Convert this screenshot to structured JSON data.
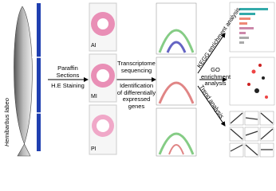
{
  "fish": {
    "species": "Hemibarbus labeo",
    "segments": [
      "AI",
      "MI",
      "PI"
    ]
  },
  "histology": {
    "steps": [
      "Paraffin Sections",
      "H.E Staining"
    ],
    "slides": [
      "AI",
      "MI",
      "PI"
    ]
  },
  "sequencing": {
    "steps": [
      "Transcriptome sequencing",
      "Identification of differentially expressed genes"
    ]
  },
  "analyses": [
    "KEGG enrichment analysis",
    "GO enrichment analysis",
    "Trend analysis"
  ]
}
